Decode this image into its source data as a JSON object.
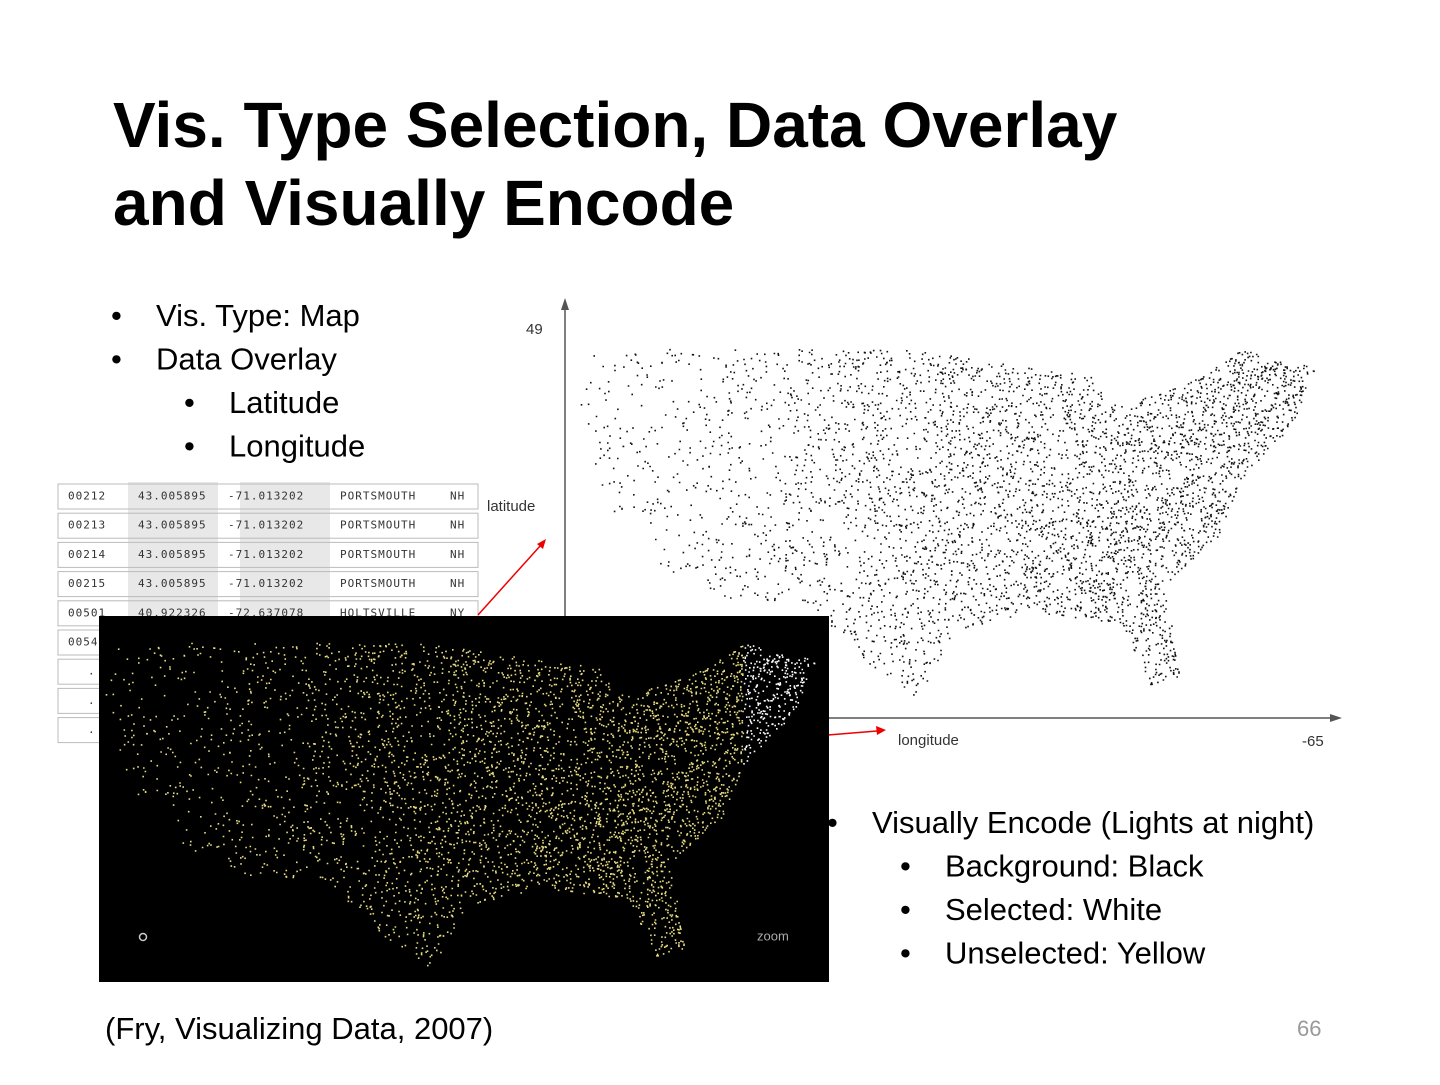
{
  "header": {
    "title": [
      "Vis. Type Selection, Data Overlay",
      "and Visually Encode"
    ]
  },
  "bullets_left": [
    {
      "text": "Vis. Type: Map",
      "level": 1
    },
    {
      "text": "Data Overlay",
      "level": 1
    },
    {
      "text": "Latitude",
      "level": 2
    },
    {
      "text": "Longitude",
      "level": 2
    }
  ],
  "table": {
    "rows": [
      [
        "00212",
        "43.005895",
        "-71.013202",
        "PORTSMOUTH",
        "NH"
      ],
      [
        "00213",
        "43.005895",
        "-71.013202",
        "PORTSMOUTH",
        "NH"
      ],
      [
        "00214",
        "43.005895",
        "-71.013202",
        "PORTSMOUTH",
        "NH"
      ],
      [
        "00215",
        "43.005895",
        "-71.013202",
        "PORTSMOUTH",
        "NH"
      ],
      [
        "00501",
        "40.922326",
        "-72.637078",
        "HOLTSVILLE",
        "NY"
      ],
      [
        "0054"
      ],
      [
        "."
      ],
      [
        "."
      ],
      [
        "."
      ]
    ]
  },
  "scatter_map": {
    "y_top_label": "49",
    "y_axis_label": "latitude",
    "x_axis_label": "longitude",
    "x_right_label": "-65"
  },
  "night_map": {
    "zoom_label": "zoom"
  },
  "bullets_right": [
    {
      "text": "Visually Encode (Lights at night)",
      "level": 1
    },
    {
      "text": "Background: Black",
      "level": 2
    },
    {
      "text": "Selected: White",
      "level": 2
    },
    {
      "text": "Unselected: Yellow",
      "level": 2
    }
  ],
  "citation": "(Fry, Visualizing Data, 2007)",
  "page_number": "66"
}
